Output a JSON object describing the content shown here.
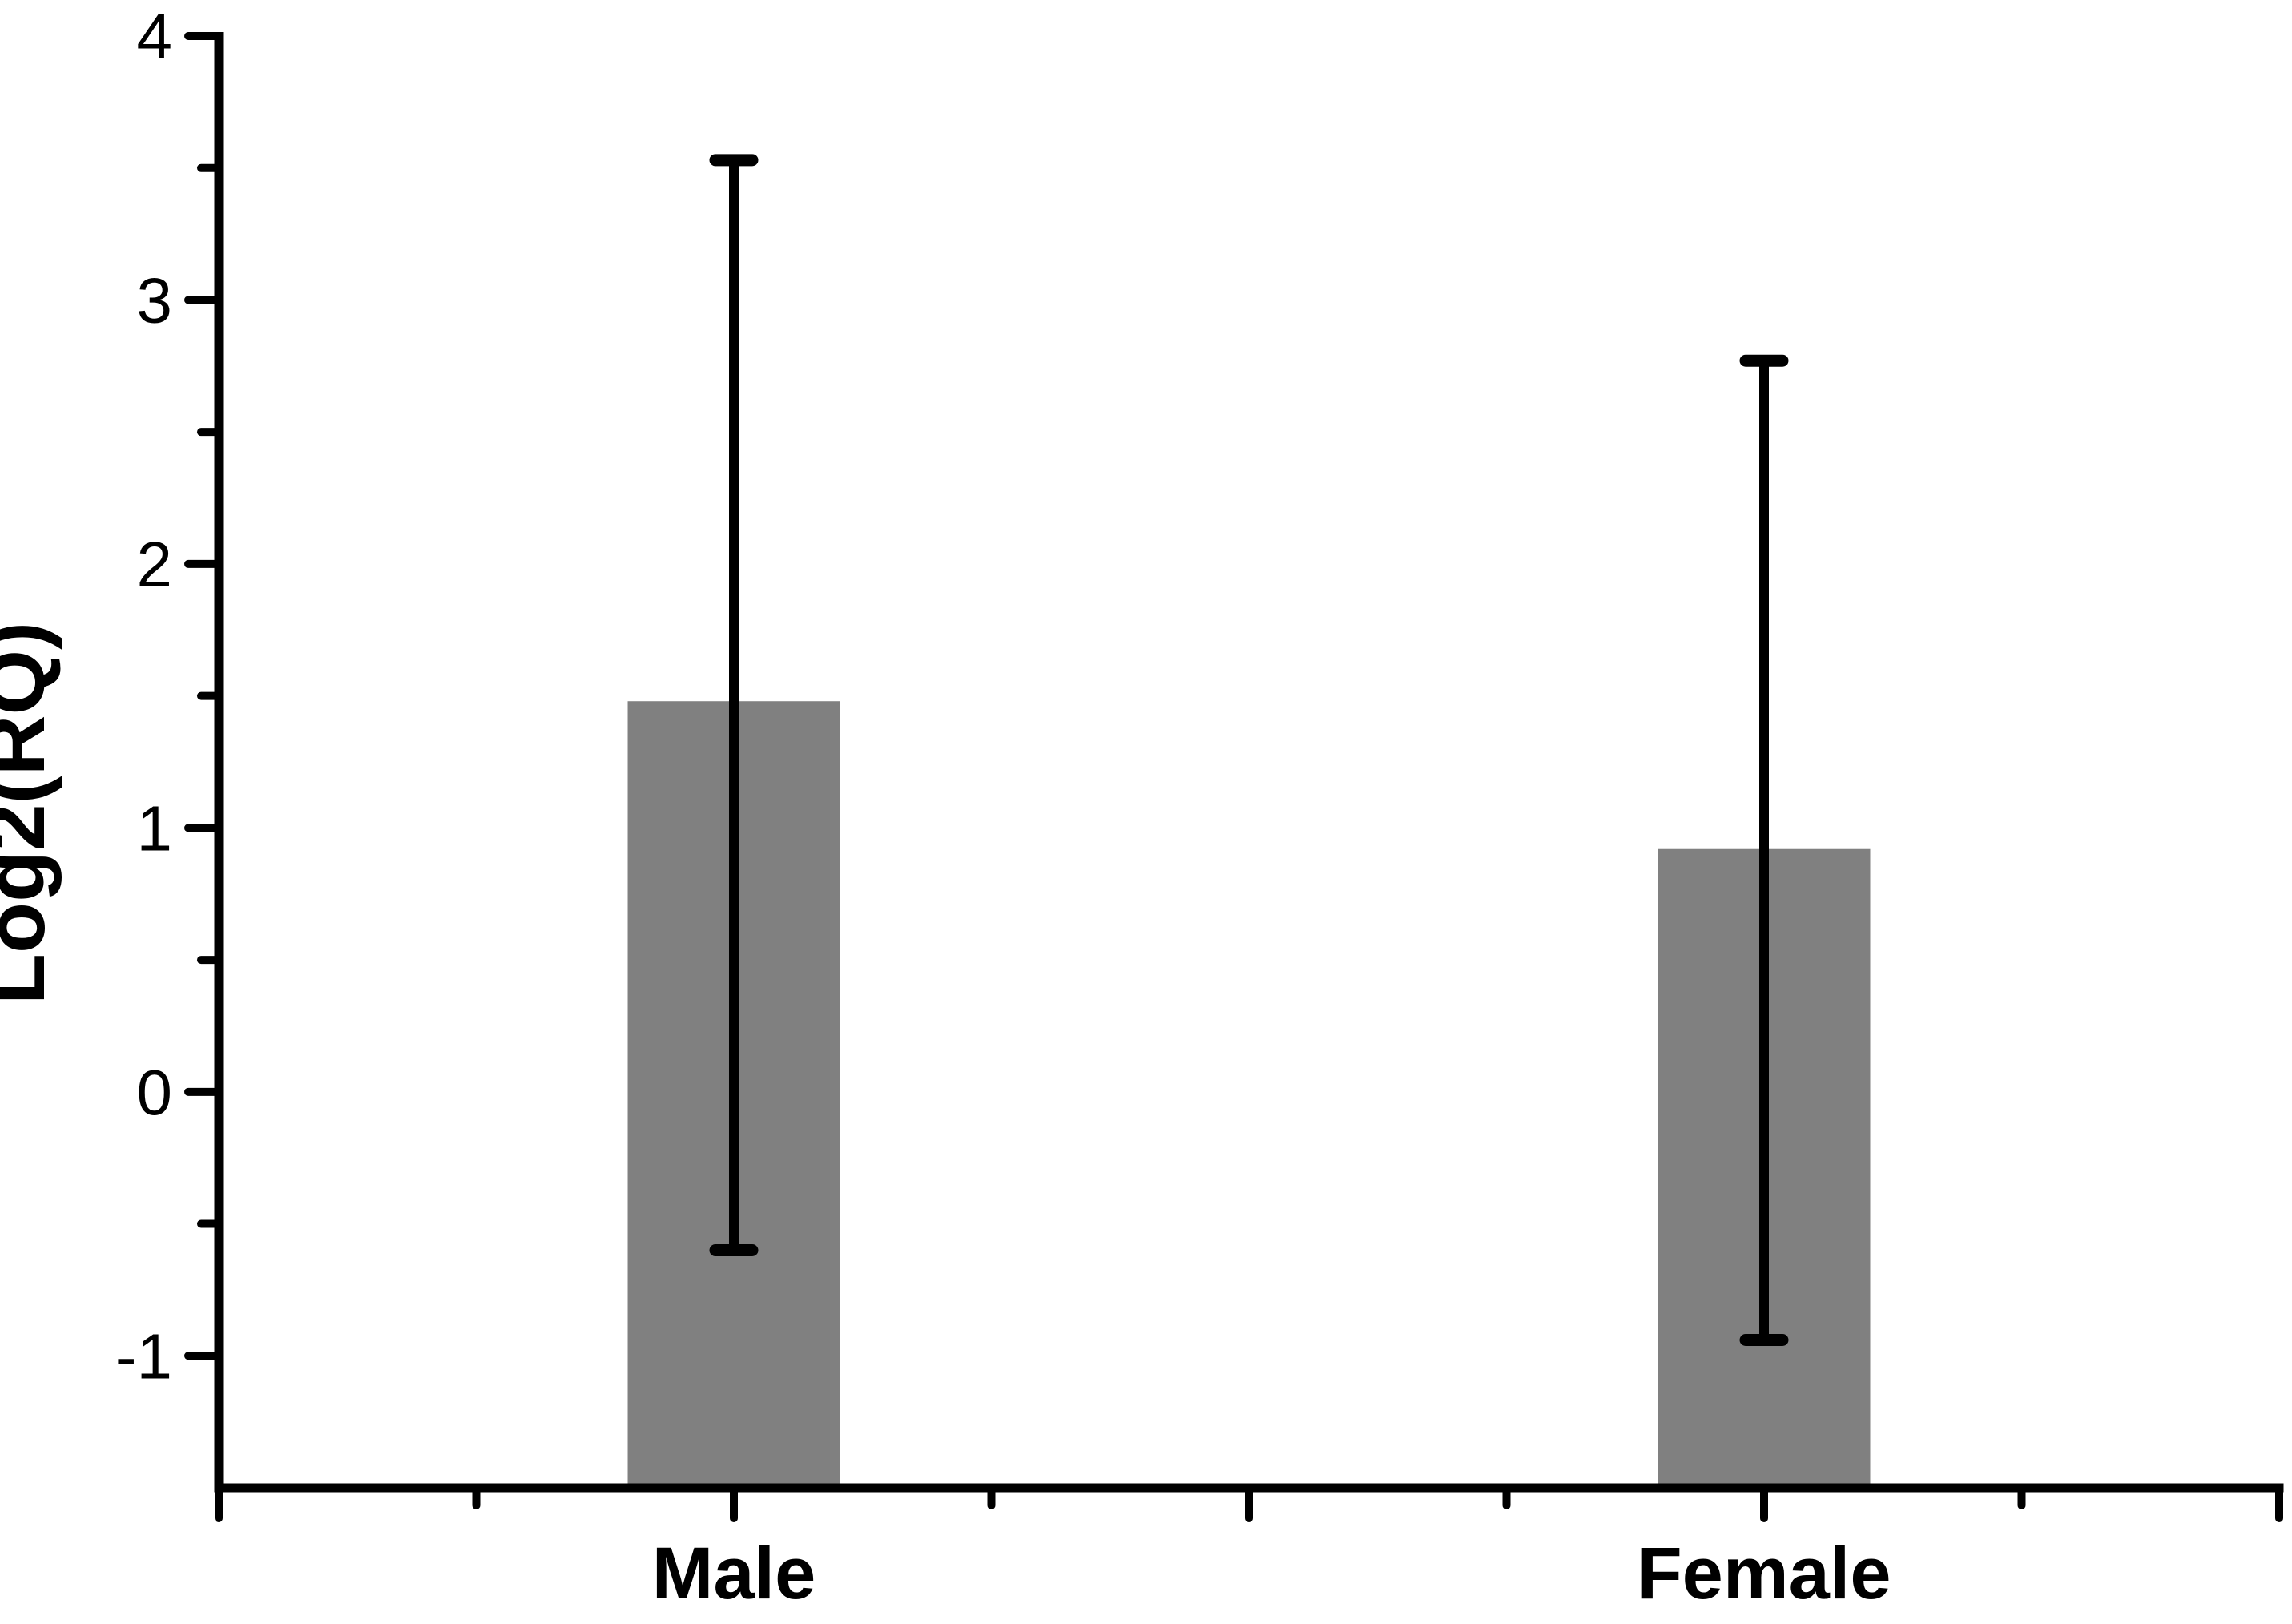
{
  "figure": {
    "background": "#ffffff"
  },
  "chart_data": {
    "type": "bar",
    "title": "",
    "xlabel": "",
    "ylabel": "Log2(RQ)",
    "categories": [
      "Male",
      "Female"
    ],
    "values": [
      1.48,
      0.92
    ],
    "error_upper": [
      3.53,
      2.77
    ],
    "error_lower": [
      -0.6,
      -0.94
    ],
    "ylim": [
      -1.5,
      4
    ],
    "ytick_values": [
      -1,
      0,
      1,
      2,
      3,
      4
    ],
    "ytick_labels": [
      "-1",
      "0",
      "1",
      "2",
      "3",
      "4"
    ],
    "ytick_minor_step": 0.5,
    "bar_color": "#808080",
    "axis_color": "#000000",
    "error_bar_color": "#000000",
    "grid": false,
    "legend": "none"
  }
}
